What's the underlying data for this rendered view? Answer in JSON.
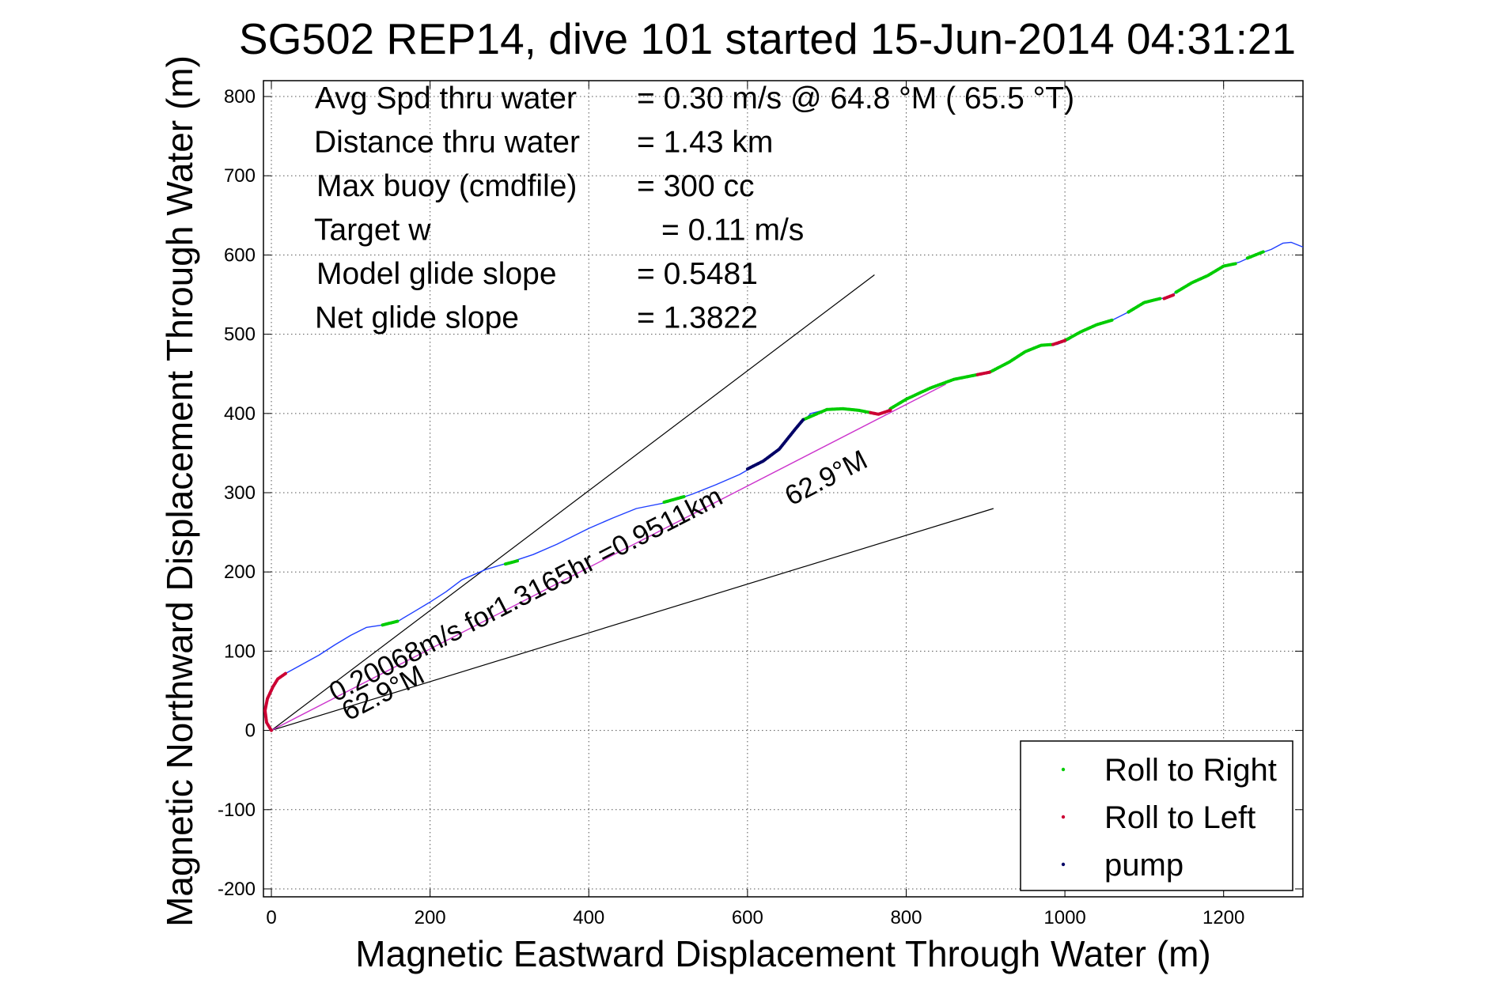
{
  "chart_data": {
    "type": "line",
    "title": "SG502 REP14, dive 101 started 15-Jun-2014 04:31:21",
    "xlabel": "Magnetic Eastward Displacement Through Water (m)",
    "ylabel": "Magnetic Northward Displacement Through Water (m)",
    "xlim": [
      -10,
      1300
    ],
    "ylim": [
      -210,
      820
    ],
    "xticks": [
      0,
      200,
      400,
      600,
      800,
      1000,
      1200
    ],
    "yticks": [
      -200,
      -100,
      0,
      100,
      200,
      300,
      400,
      500,
      600,
      700,
      800
    ],
    "grid": true,
    "info": [
      {
        "label": "Avg Spd thru water",
        "value": "=  0.30 m/s @  64.8 °M ( 65.5 °T)"
      },
      {
        "label": "Distance thru water",
        "value": "=  1.43 km"
      },
      {
        "label": "Max buoy (cmdfile)",
        "value": "= 300 cc"
      },
      {
        "label": "Target w",
        "value": "= 0.11 m/s"
      },
      {
        "label": "Model glide slope",
        "value": "= 0.5481"
      },
      {
        "label": "Net glide slope",
        "value": "= 1.3822"
      }
    ],
    "annotations": {
      "net_speed": "0.20068m/s for1.3165hr =0.9511km",
      "heading_lower": "62.9°M",
      "heading_upper": "62.9°M"
    },
    "legend": {
      "position": "bottom-right",
      "entries": [
        {
          "name": "Roll to Right",
          "color": "#00cc00"
        },
        {
          "name": "Roll to Left",
          "color": "#cc0033"
        },
        {
          "name": "pump",
          "color": "#000066"
        }
      ]
    },
    "colors": {
      "track": "#1f3fff",
      "roll_right": "#00cc00",
      "roll_left": "#cc0033",
      "pump": "#000066",
      "net_line": "#cc33cc",
      "guide_lines": "#000000"
    },
    "track": [
      [
        0,
        0
      ],
      [
        -6,
        10
      ],
      [
        -8,
        25
      ],
      [
        -5,
        40
      ],
      [
        2,
        55
      ],
      [
        8,
        65
      ],
      [
        18,
        72
      ],
      [
        40,
        84
      ],
      [
        60,
        95
      ],
      [
        80,
        108
      ],
      [
        100,
        120
      ],
      [
        120,
        130
      ],
      [
        140,
        133
      ],
      [
        160,
        138
      ],
      [
        180,
        150
      ],
      [
        200,
        162
      ],
      [
        220,
        175
      ],
      [
        240,
        190
      ],
      [
        270,
        203
      ],
      [
        300,
        212
      ],
      [
        330,
        222
      ],
      [
        360,
        235
      ],
      [
        380,
        245
      ],
      [
        400,
        255
      ],
      [
        430,
        268
      ],
      [
        460,
        280
      ],
      [
        500,
        288
      ],
      [
        530,
        298
      ],
      [
        560,
        310
      ],
      [
        590,
        323
      ],
      [
        620,
        340
      ],
      [
        640,
        355
      ],
      [
        660,
        380
      ],
      [
        680,
        400
      ],
      [
        700,
        405
      ],
      [
        720,
        406
      ],
      [
        740,
        404
      ],
      [
        760,
        399
      ],
      [
        775,
        403
      ],
      [
        790,
        413
      ],
      [
        810,
        423
      ],
      [
        830,
        432
      ],
      [
        850,
        440
      ],
      [
        870,
        446
      ],
      [
        890,
        449
      ],
      [
        910,
        453
      ],
      [
        930,
        465
      ],
      [
        950,
        478
      ],
      [
        970,
        486
      ],
      [
        990,
        487
      ],
      [
        1005,
        493
      ],
      [
        1020,
        503
      ],
      [
        1040,
        512
      ],
      [
        1060,
        518
      ],
      [
        1080,
        528
      ],
      [
        1100,
        540
      ],
      [
        1120,
        545
      ],
      [
        1130,
        546
      ],
      [
        1140,
        553
      ],
      [
        1160,
        565
      ],
      [
        1180,
        574
      ],
      [
        1200,
        586
      ],
      [
        1220,
        591
      ],
      [
        1240,
        600
      ],
      [
        1260,
        607
      ],
      [
        1275,
        615
      ],
      [
        1285,
        616
      ],
      [
        1300,
        610
      ]
    ],
    "roll_right_segments": [
      [
        [
          140,
          133
        ],
        [
          160,
          138
        ]
      ],
      [
        [
          295,
          210
        ],
        [
          310,
          214
        ]
      ],
      [
        [
          495,
          288
        ],
        [
          520,
          295
        ]
      ],
      [
        [
          670,
          392
        ],
        [
          700,
          405
        ],
        [
          720,
          406
        ],
        [
          740,
          404
        ],
        [
          755,
          401
        ]
      ],
      [
        [
          780,
          406
        ],
        [
          800,
          418
        ],
        [
          830,
          432
        ],
        [
          860,
          443
        ],
        [
          890,
          449
        ]
      ],
      [
        [
          905,
          452
        ],
        [
          930,
          465
        ],
        [
          950,
          478
        ],
        [
          970,
          486
        ],
        [
          985,
          487
        ]
      ],
      [
        [
          1000,
          492
        ],
        [
          1020,
          503
        ],
        [
          1040,
          512
        ],
        [
          1060,
          518
        ]
      ],
      [
        [
          1080,
          528
        ],
        [
          1100,
          540
        ],
        [
          1120,
          545
        ]
      ],
      [
        [
          1140,
          553
        ],
        [
          1160,
          565
        ],
        [
          1180,
          574
        ],
        [
          1200,
          586
        ],
        [
          1215,
          589
        ]
      ],
      [
        [
          1230,
          596
        ],
        [
          1250,
          604
        ]
      ]
    ],
    "roll_left_segments": [
      [
        [
          0,
          0
        ],
        [
          -6,
          10
        ],
        [
          -8,
          25
        ],
        [
          -5,
          40
        ],
        [
          2,
          55
        ],
        [
          8,
          65
        ],
        [
          18,
          72
        ]
      ],
      [
        [
          755,
          401
        ],
        [
          765,
          399
        ],
        [
          780,
          404
        ]
      ],
      [
        [
          890,
          449
        ],
        [
          905,
          452
        ]
      ],
      [
        [
          985,
          487
        ],
        [
          1000,
          492
        ]
      ],
      [
        [
          1125,
          545
        ],
        [
          1138,
          550
        ]
      ]
    ],
    "pump_segments": [
      [
        [
          600,
          330
        ],
        [
          620,
          340
        ],
        [
          640,
          355
        ],
        [
          660,
          380
        ],
        [
          670,
          392
        ]
      ]
    ],
    "net_line": [
      [
        0,
        0
      ],
      [
        850,
        437
      ]
    ],
    "guide_lines": [
      [
        [
          0,
          0
        ],
        [
          760,
          575
        ]
      ],
      [
        [
          0,
          0
        ],
        [
          910,
          280
        ]
      ]
    ]
  }
}
